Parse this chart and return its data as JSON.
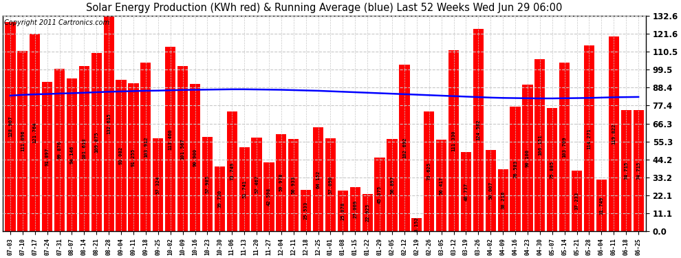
{
  "title": "Solar Energy Production (KWh red) & Running Average (blue) Last 52 Weeks Wed Jun 29 06:00",
  "copyright": "Copyright 2011 Cartronics.com",
  "bar_color": "#ff0000",
  "avg_line_color": "#0000ff",
  "background_color": "#ffffff",
  "plot_bg_color": "#ffffff",
  "grid_color": "#c8c8c8",
  "ylim": [
    0.0,
    132.6
  ],
  "yticks": [
    0.0,
    11.1,
    22.1,
    33.2,
    44.2,
    55.3,
    66.3,
    77.4,
    88.4,
    99.5,
    110.5,
    121.6,
    132.6
  ],
  "categories": [
    "07-03",
    "07-10",
    "07-17",
    "07-24",
    "07-31",
    "08-07",
    "08-14",
    "08-21",
    "08-28",
    "09-04",
    "09-11",
    "09-18",
    "09-25",
    "10-02",
    "10-09",
    "10-16",
    "10-23",
    "10-30",
    "11-06",
    "11-13",
    "11-20",
    "11-27",
    "12-04",
    "12-11",
    "12-18",
    "12-25",
    "01-01",
    "01-08",
    "01-15",
    "01-22",
    "01-29",
    "02-05",
    "02-12",
    "02-19",
    "02-26",
    "03-05",
    "03-12",
    "03-19",
    "03-26",
    "04-02",
    "04-09",
    "04-16",
    "04-23",
    "04-30",
    "05-07",
    "05-14",
    "05-21",
    "05-28",
    "06-04",
    "06-11",
    "06-18",
    "06-25"
  ],
  "values": [
    128.907,
    111.096,
    121.764,
    91.897,
    99.876,
    94.146,
    101.613,
    109.875,
    132.615,
    93.082,
    91.255,
    103.912,
    57.324,
    113.46,
    101.567,
    90.9,
    57.985,
    39.73,
    73.749,
    51.741,
    57.467,
    42.598,
    59.978,
    56.933,
    25.533,
    64.152,
    57.09,
    25.078,
    27.009,
    22.925,
    45.375,
    56.897,
    102.692,
    8.152,
    73.625,
    56.417,
    111.33,
    48.737,
    124.582,
    50.007,
    38.216,
    76.583,
    90.1,
    106.151,
    75.885,
    103.709,
    37.233,
    114.271,
    31.749,
    119.822,
    74.715,
    74.715
  ],
  "avg_values": [
    83.5,
    84.0,
    84.3,
    84.5,
    84.8,
    85.0,
    85.3,
    85.6,
    85.9,
    86.1,
    86.3,
    86.5,
    86.6,
    86.8,
    87.0,
    87.1,
    87.2,
    87.3,
    87.4,
    87.4,
    87.3,
    87.2,
    87.1,
    86.9,
    86.7,
    86.5,
    86.2,
    85.9,
    85.6,
    85.3,
    85.0,
    84.7,
    84.4,
    84.1,
    83.8,
    83.5,
    83.2,
    82.9,
    82.6,
    82.3,
    82.1,
    82.0,
    81.9,
    81.8,
    81.8,
    81.9,
    82.0,
    82.1,
    82.3,
    82.5,
    82.6,
    82.7
  ]
}
